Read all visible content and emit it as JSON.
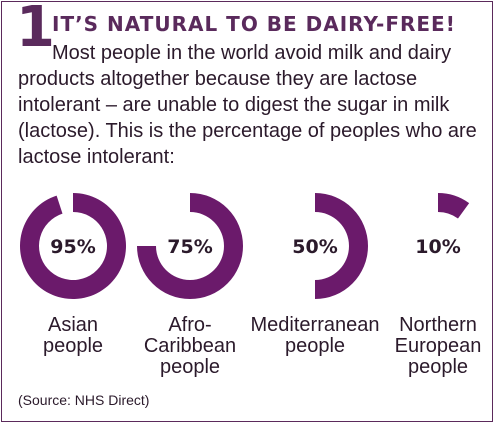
{
  "header": {
    "number": "1",
    "title": "IT’S NATURAL TO BE DAIRY-FREE!"
  },
  "body": "Most people in the world avoid milk and dairy products altogether because they are lactose intolerant – are unable to digest the sugar in milk (lactose). This is the percentage of peoples who are lactose intolerant:",
  "source": "(Source: NHS Direct)",
  "colors": {
    "accent": "#6b1a6b",
    "heading": "#5a2a5c",
    "text": "#2b1a2b"
  },
  "chart_data": {
    "type": "pie",
    "items": [
      {
        "label_lines": [
          "Asian",
          "people"
        ],
        "value": 95,
        "value_label": "95%"
      },
      {
        "label_lines": [
          "Afro-",
          "Caribbean",
          "people"
        ],
        "value": 75,
        "value_label": "75%"
      },
      {
        "label_lines": [
          "Mediterranean",
          "people"
        ],
        "value": 50,
        "value_label": "50%"
      },
      {
        "label_lines": [
          "Northern",
          "European",
          "people"
        ],
        "value": 10,
        "value_label": "10%"
      }
    ]
  }
}
